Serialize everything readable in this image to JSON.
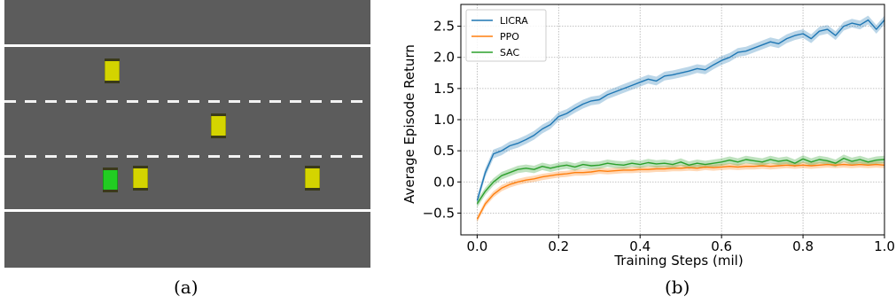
{
  "captions": {
    "a": "(a)",
    "b": "(b)"
  },
  "road_scene": {
    "background_color": "#5c5c5c",
    "lanes": 3,
    "cars": [
      {
        "color": "yellow",
        "lane": 1
      },
      {
        "color": "yellow",
        "lane": 2
      },
      {
        "color": "green",
        "lane": 3,
        "agent": true
      },
      {
        "color": "yellow",
        "lane": 3
      },
      {
        "color": "yellow",
        "lane": 3
      }
    ]
  },
  "chart_data": {
    "type": "line",
    "xlabel": "Training Steps (mil)",
    "ylabel": "Average Episode Return",
    "xlim": [
      -0.04,
      1.0
    ],
    "ylim": [
      -0.85,
      2.85
    ],
    "xticks": [
      0.0,
      0.2,
      0.4,
      0.6,
      0.8,
      1.0
    ],
    "xtick_labels": [
      "0.0",
      "0.2",
      "0.4",
      "0.6",
      "0.8",
      "1.0"
    ],
    "yticks": [
      -0.5,
      0.0,
      0.5,
      1.0,
      1.5,
      2.0,
      2.5
    ],
    "ytick_labels": [
      "−0.5",
      "0.0",
      "0.5",
      "1.0",
      "1.5",
      "2.0",
      "2.5"
    ],
    "grid": true,
    "legend_position": "top-left",
    "x": [
      0.0,
      0.02,
      0.04,
      0.06,
      0.08,
      0.1,
      0.12,
      0.14,
      0.16,
      0.18,
      0.2,
      0.22,
      0.24,
      0.26,
      0.28,
      0.3,
      0.32,
      0.34,
      0.36,
      0.38,
      0.4,
      0.42,
      0.44,
      0.46,
      0.48,
      0.5,
      0.52,
      0.54,
      0.56,
      0.58,
      0.6,
      0.62,
      0.64,
      0.66,
      0.68,
      0.7,
      0.72,
      0.74,
      0.76,
      0.78,
      0.8,
      0.82,
      0.84,
      0.86,
      0.88,
      0.9,
      0.92,
      0.94,
      0.96,
      0.98,
      1.0
    ],
    "series": [
      {
        "name": "LICRA",
        "color": "#1f77b4",
        "values": [
          -0.3,
          0.15,
          0.45,
          0.5,
          0.58,
          0.62,
          0.68,
          0.75,
          0.85,
          0.92,
          1.05,
          1.1,
          1.18,
          1.25,
          1.3,
          1.32,
          1.4,
          1.45,
          1.5,
          1.55,
          1.6,
          1.65,
          1.62,
          1.7,
          1.72,
          1.75,
          1.78,
          1.82,
          1.8,
          1.88,
          1.95,
          2.0,
          2.08,
          2.1,
          2.15,
          2.2,
          2.25,
          2.22,
          2.3,
          2.35,
          2.38,
          2.3,
          2.42,
          2.45,
          2.35,
          2.5,
          2.55,
          2.52,
          2.6,
          2.45,
          2.6
        ],
        "band": 0.07
      },
      {
        "name": "PPO",
        "color": "#ff7f0e",
        "values": [
          -0.6,
          -0.35,
          -0.2,
          -0.1,
          -0.04,
          0.0,
          0.03,
          0.05,
          0.08,
          0.1,
          0.12,
          0.13,
          0.15,
          0.15,
          0.16,
          0.18,
          0.17,
          0.18,
          0.19,
          0.19,
          0.2,
          0.2,
          0.21,
          0.21,
          0.22,
          0.22,
          0.23,
          0.22,
          0.24,
          0.23,
          0.24,
          0.25,
          0.24,
          0.25,
          0.25,
          0.26,
          0.25,
          0.26,
          0.27,
          0.26,
          0.27,
          0.26,
          0.27,
          0.28,
          0.27,
          0.28,
          0.27,
          0.28,
          0.27,
          0.28,
          0.27
        ],
        "band": 0.05
      },
      {
        "name": "SAC",
        "color": "#2ca02c",
        "values": [
          -0.35,
          -0.15,
          0.0,
          0.1,
          0.15,
          0.2,
          0.22,
          0.2,
          0.25,
          0.22,
          0.25,
          0.27,
          0.24,
          0.28,
          0.26,
          0.27,
          0.3,
          0.28,
          0.27,
          0.3,
          0.28,
          0.31,
          0.29,
          0.3,
          0.28,
          0.32,
          0.27,
          0.3,
          0.28,
          0.3,
          0.32,
          0.35,
          0.32,
          0.36,
          0.34,
          0.32,
          0.36,
          0.33,
          0.35,
          0.3,
          0.37,
          0.32,
          0.36,
          0.34,
          0.3,
          0.38,
          0.33,
          0.36,
          0.32,
          0.35,
          0.36
        ],
        "band": 0.06
      }
    ]
  }
}
